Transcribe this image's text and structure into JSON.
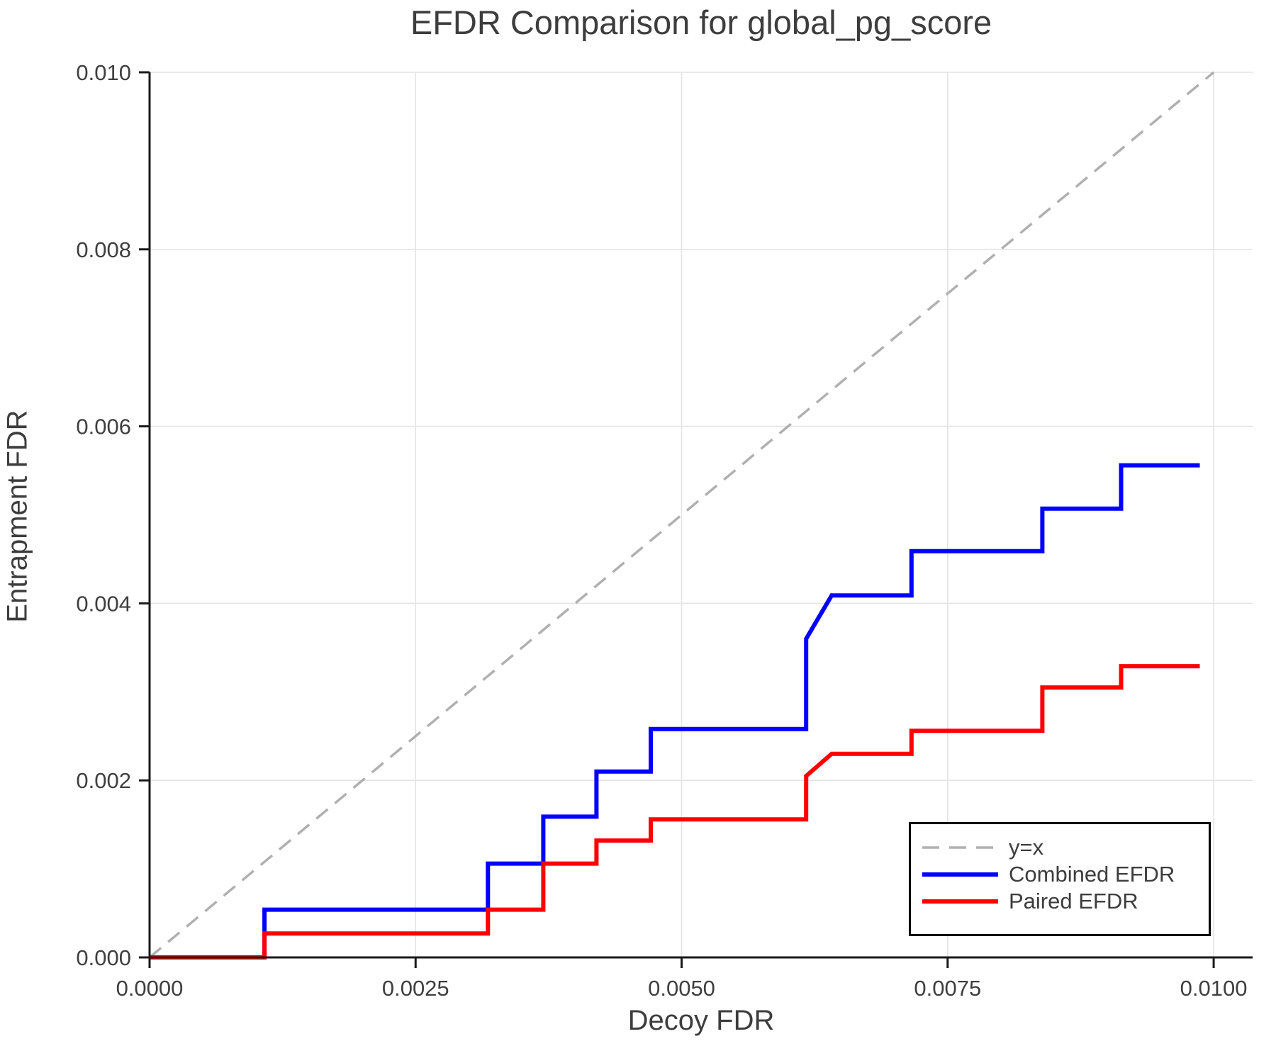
{
  "chart_data": {
    "type": "line",
    "title": "EFDR Comparison for global_pg_score",
    "xlabel": "Decoy FDR",
    "ylabel": "Entrapment FDR",
    "xlim": [
      0,
      0.010366
    ],
    "ylim": [
      0,
      0.01
    ],
    "grid": true,
    "legend_position": "lower right",
    "xticks": [
      {
        "value": 0.0,
        "label": "0.0000"
      },
      {
        "value": 0.0025,
        "label": "0.0025"
      },
      {
        "value": 0.005,
        "label": "0.0050"
      },
      {
        "value": 0.0075,
        "label": "0.0075"
      },
      {
        "value": 0.01,
        "label": "0.0100"
      }
    ],
    "yticks": [
      {
        "value": 0.0,
        "label": "0.000"
      },
      {
        "value": 0.002,
        "label": "0.002"
      },
      {
        "value": 0.004,
        "label": "0.004"
      },
      {
        "value": 0.006,
        "label": "0.006"
      },
      {
        "value": 0.008,
        "label": "0.008"
      },
      {
        "value": 0.01,
        "label": "0.010"
      }
    ],
    "series": [
      {
        "name": "y=x",
        "color": "#b0b0b0",
        "style": "dashed",
        "line_width": 3.5,
        "points": [
          [
            0,
            0
          ],
          [
            0.01,
            0.01
          ]
        ]
      },
      {
        "name": "Combined EFDR",
        "color": "#0000ff",
        "style": "solid",
        "line_width": 6,
        "points": [
          [
            0,
            0
          ],
          [
            0.00108,
            0
          ],
          [
            0.00108,
            0.00054
          ],
          [
            0.00318,
            0.00054
          ],
          [
            0.00318,
            0.00106
          ],
          [
            0.0037,
            0.00106
          ],
          [
            0.0037,
            0.00159
          ],
          [
            0.0042,
            0.00159
          ],
          [
            0.0042,
            0.0021
          ],
          [
            0.00471,
            0.0021
          ],
          [
            0.00471,
            0.00258
          ],
          [
            0.00617,
            0.00258
          ],
          [
            0.00617,
            0.0036
          ],
          [
            0.00641,
            0.00409
          ],
          [
            0.00716,
            0.00409
          ],
          [
            0.00716,
            0.00459
          ],
          [
            0.00839,
            0.00459
          ],
          [
            0.00839,
            0.00507
          ],
          [
            0.00913,
            0.00507
          ],
          [
            0.00913,
            0.00556
          ],
          [
            0.00987,
            0.00556
          ]
        ]
      },
      {
        "name": "Paired EFDR",
        "color": "#ff0000",
        "style": "solid",
        "line_width": 6,
        "points": [
          [
            0,
            0
          ],
          [
            0.00108,
            0
          ],
          [
            0.00108,
            0.00027
          ],
          [
            0.00318,
            0.00027
          ],
          [
            0.00318,
            0.00054
          ],
          [
            0.0037,
            0.00054
          ],
          [
            0.0037,
            0.00106
          ],
          [
            0.0042,
            0.00106
          ],
          [
            0.0042,
            0.00132
          ],
          [
            0.00471,
            0.00132
          ],
          [
            0.00471,
            0.00156
          ],
          [
            0.00617,
            0.00156
          ],
          [
            0.00617,
            0.00205
          ],
          [
            0.00641,
            0.0023
          ],
          [
            0.00716,
            0.0023
          ],
          [
            0.00716,
            0.00256
          ],
          [
            0.00839,
            0.00256
          ],
          [
            0.00839,
            0.00305
          ],
          [
            0.00913,
            0.00305
          ],
          [
            0.00913,
            0.00329
          ],
          [
            0.00987,
            0.00329
          ]
        ]
      }
    ],
    "style": {
      "grid_color": "#e3e3e3",
      "spine_color": "#1a1a1a",
      "tick_label_color": "#3f3f3f",
      "text_color": "#3d3d3d",
      "background": "#ffffff"
    }
  }
}
